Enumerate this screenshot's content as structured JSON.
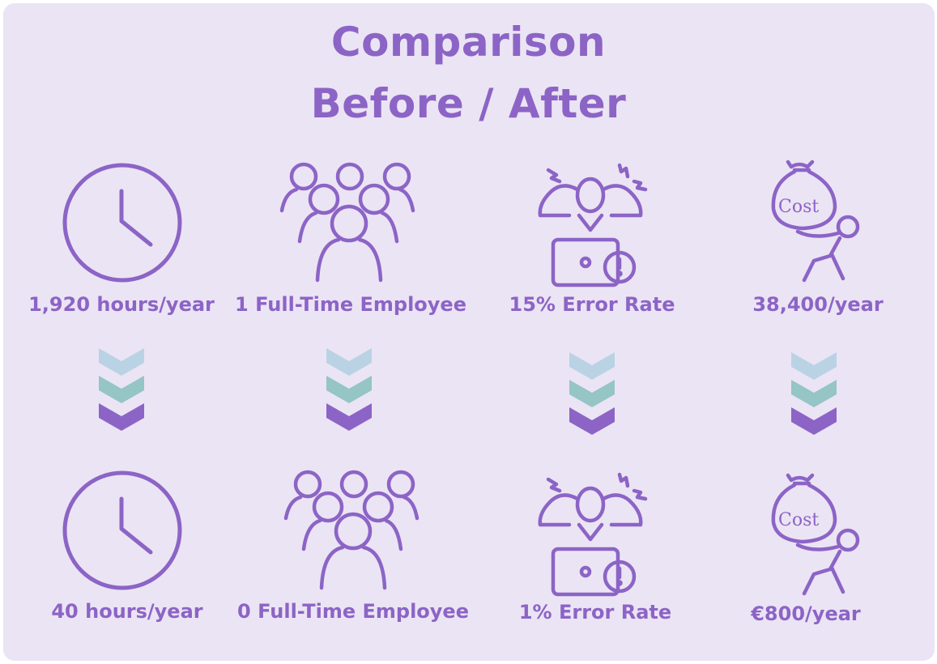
{
  "title": {
    "line1": "Comparison",
    "line2": "Before / After"
  },
  "colors": {
    "purple": "#8c64c6",
    "card": "#ebe4f4",
    "chev1": "#b9d3e4",
    "chev2": "#95c5c5",
    "chev3": "#8c64c6"
  },
  "icons": {
    "time": "clock-icon",
    "staff": "group-of-people-icon",
    "errors": "stressed-person-at-laptop-icon",
    "cost": "person-dragging-cost-bag-icon"
  },
  "cost_bag_text": "Cost",
  "before": {
    "time": "1,920 hours/year",
    "staff": "1 Full-Time Employee",
    "errors": "15% Error Rate",
    "cost": "38,400/year"
  },
  "after": {
    "time": "40 hours/year",
    "staff": "0 Full-Time Employee",
    "errors": "1% Error Rate",
    "cost": "€800/year"
  }
}
